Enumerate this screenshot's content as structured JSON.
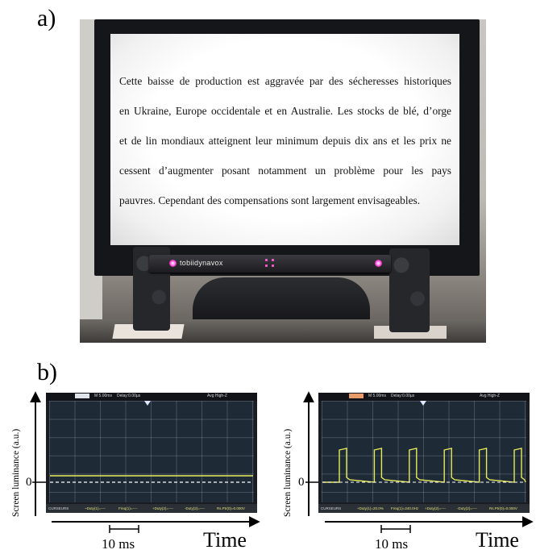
{
  "figure": {
    "panel_a_label": "a)",
    "panel_b_label": "b)"
  },
  "monitor": {
    "screen_text_lines": [
      "Cette baisse de production est aggravée par des sécheresses historiques",
      "en Ukraine, Europe occidentale et en Australie. Les stocks de blé, d’orge",
      "et de lin mondiaux atteignent leur minimum depuis dix ans et les prix ne",
      "cessent d’augmenter posant notamment un problème pour les pays",
      "pauvres. Cependant des compensations sont largement envisageables."
    ],
    "eye_tracker_brand": "tobiidynavox"
  },
  "colors": {
    "trace": "#e7ea5a",
    "scope_grid_bg": "#1e2a36",
    "ir_led": "#ff3ccf"
  },
  "scopes": [
    {
      "name": "left",
      "status_left": "M 5.00ms",
      "status_mid": "Delay:0.00µs",
      "status_right": "Avg High-Z",
      "cursors": [
        "CURSEURS",
        "~Duty(1)=----",
        "Freq(1)=----",
        "+Duty(2)=----",
        "-Duty(2)=----",
        "Rs.Ptr(0)=0.000V"
      ],
      "y_axis_label": "Screen luminance (a.u.)",
      "zero_label": "0",
      "x_axis_label": "Time",
      "scale_bar_label": "10 ms"
    },
    {
      "name": "right",
      "status_left": "M 5.00ms",
      "status_mid": "Delay:0.00µs",
      "status_right": "Avg High-Z",
      "cursors": [
        "CURSEURS",
        "+Duty(1)=20.0%",
        "Freq(1)=240.0Hz",
        "+Duty(2)=----",
        "-Duty(2)=----",
        "Rs.Ptr(0)=0.000V"
      ],
      "y_axis_label": "Screen luminance (a.u.)",
      "zero_label": "0",
      "x_axis_label": "Time",
      "scale_bar_label": "10 ms"
    }
  ]
}
